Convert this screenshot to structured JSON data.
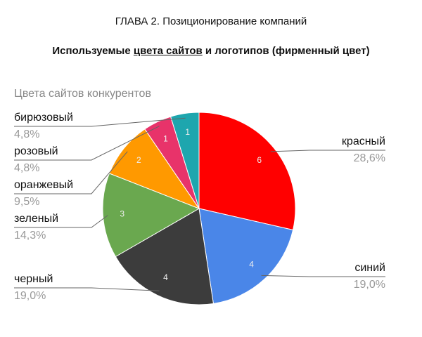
{
  "header": {
    "title": "ГЛАВА 2. Позиционирование компаний",
    "subtitle": [
      "Используемые ",
      "цвета сайтов",
      " и логотипов (фирменный цвет)"
    ]
  },
  "chart_data": {
    "type": "pie",
    "title": "Цвета сайтов конкурентов",
    "categories": [
      "красный",
      "синий",
      "черный",
      "зеленый",
      "оранжевый",
      "розовый",
      "бирюзовый"
    ],
    "values": [
      6,
      4,
      4,
      3,
      2,
      1,
      1
    ],
    "percent_labels": [
      "28,6%",
      "19,0%",
      "19,0%",
      "14,3%",
      "9,5%",
      "4,8%",
      "4,8%"
    ],
    "colors": [
      "#ff0000",
      "#4a86e8",
      "#3c3c3c",
      "#6aa84f",
      "#ff9900",
      "#e8336a",
      "#1ea6ae"
    ]
  }
}
